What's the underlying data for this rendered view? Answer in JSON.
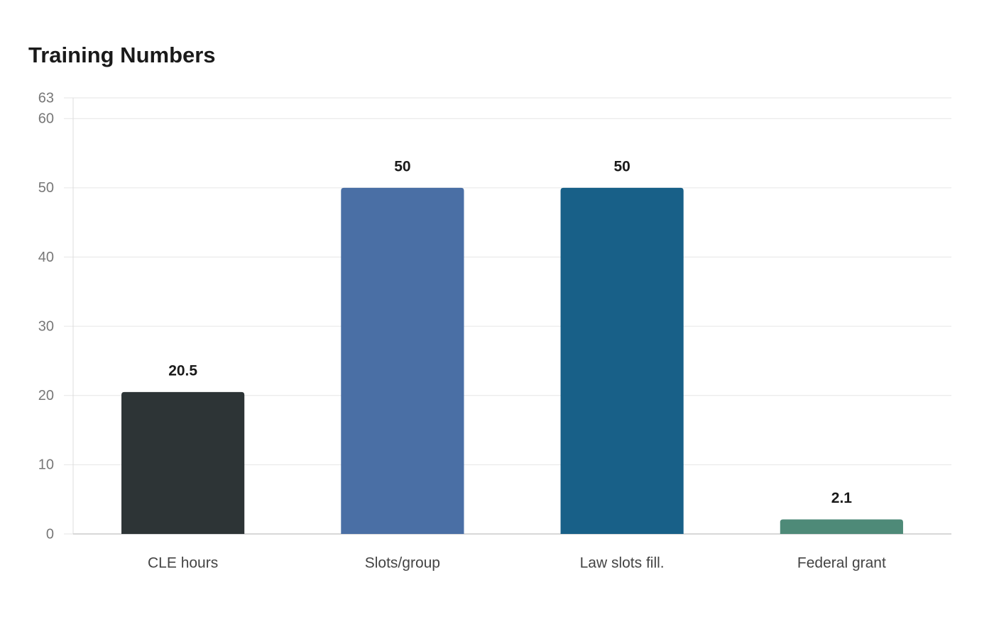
{
  "chart_data": {
    "type": "bar",
    "title": "Training Numbers",
    "categories": [
      "CLE hours",
      "Slots/group",
      "Law slots fill.",
      "Federal grant"
    ],
    "values": [
      20.5,
      50,
      50,
      2.1
    ],
    "colors": [
      "#2d3436",
      "#4a6fa5",
      "#186088",
      "#4e8a78"
    ],
    "ylim": [
      0,
      63
    ],
    "yticks": [
      0,
      10,
      20,
      30,
      40,
      50,
      60,
      63
    ],
    "grid": true
  }
}
